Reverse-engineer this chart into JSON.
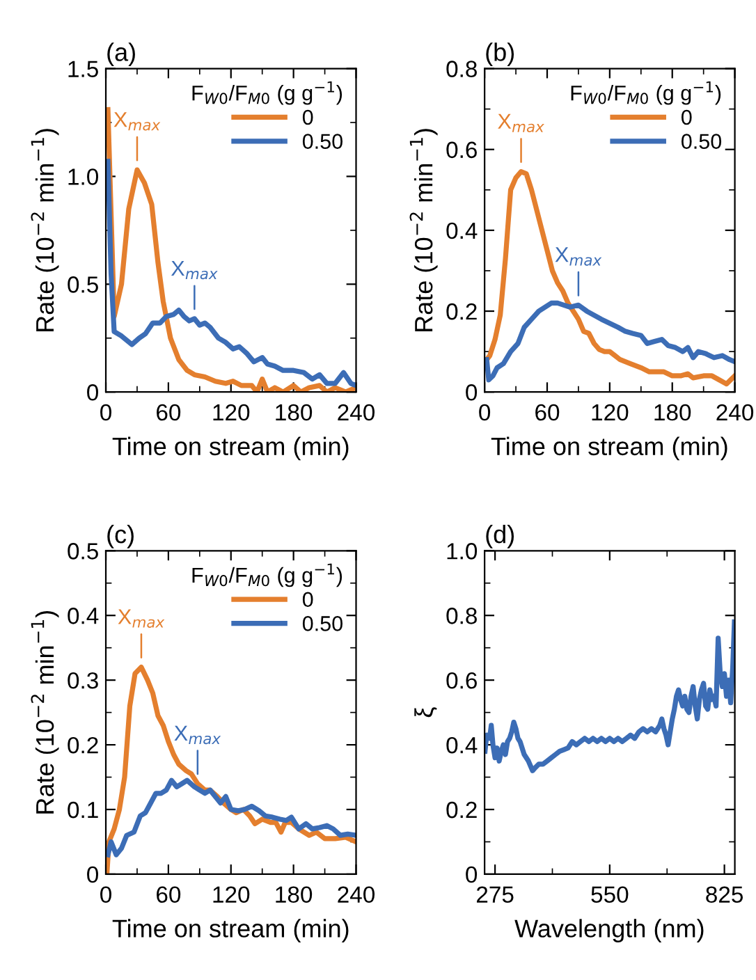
{
  "chart_data": [
    {
      "type": "line",
      "title": "(a)",
      "xlabel": "Time on stream (min)",
      "ylabel": "Rate (10$^{−2}$ min$^{−1}$)",
      "legend_title": "F$_{W0}$/F$_{M0}$ (g g$^{−1}$)",
      "legend": "top right",
      "line_style": "solid",
      "xlim": [
        0,
        240
      ],
      "xticks": [
        0,
        60,
        120,
        180,
        240
      ],
      "ylim": [
        0,
        1.5
      ],
      "yticks": [
        0,
        0.5,
        {
          "value": 1,
          "label": "1.0"
        },
        1.5
      ],
      "annotations": [
        {
          "text": "X$_{max}$",
          "x": 30,
          "y": 1.03
        },
        {
          "text": "X$_{max}$",
          "x": 85,
          "y": 0.34
        }
      ],
      "series": [
        {
          "name": "0",
          "color": "#e47f2e",
          "x": [
            2,
            8,
            15,
            22,
            30,
            37,
            44,
            50,
            55,
            62,
            70,
            78,
            85,
            95,
            105,
            115,
            122,
            130,
            140,
            145,
            150,
            155,
            162,
            170,
            180,
            187,
            195,
            205,
            212,
            220,
            230,
            240
          ],
          "values": [
            1.31,
            0.35,
            0.5,
            0.85,
            1.03,
            0.97,
            0.87,
            0.6,
            0.42,
            0.25,
            0.15,
            0.1,
            0.08,
            0.07,
            0.05,
            0.04,
            0.05,
            0.03,
            0.03,
            0.0,
            0.06,
            0.0,
            0.02,
            0.0,
            0.03,
            0.0,
            0.02,
            0.03,
            0.0,
            0.02,
            0.0,
            0.02
          ]
        },
        {
          "name": "0.50",
          "color": "#3c6db6",
          "x": [
            2,
            5,
            8,
            15,
            25,
            32,
            38,
            45,
            52,
            58,
            65,
            70,
            75,
            80,
            85,
            90,
            95,
            100,
            108,
            115,
            122,
            128,
            135,
            142,
            150,
            155,
            162,
            170,
            180,
            190,
            198,
            205,
            212,
            220,
            228,
            235,
            240
          ],
          "values": [
            1.07,
            0.55,
            0.28,
            0.26,
            0.22,
            0.25,
            0.27,
            0.32,
            0.32,
            0.35,
            0.36,
            0.38,
            0.35,
            0.33,
            0.34,
            0.31,
            0.32,
            0.3,
            0.25,
            0.23,
            0.2,
            0.21,
            0.18,
            0.14,
            0.16,
            0.13,
            0.12,
            0.1,
            0.1,
            0.09,
            0.06,
            0.08,
            0.04,
            0.04,
            0.09,
            0.04,
            0.03
          ]
        }
      ]
    },
    {
      "type": "line",
      "title": "(b)",
      "xlabel": "Time on stream (min)",
      "ylabel": "Rate (10$^{−2}$ min$^{−1}$)",
      "legend_title": "F$_{W0}$/F$_{M0}$ (g g$^{−1}$)",
      "legend": "top right",
      "line_style": "solid",
      "xlim": [
        0,
        240
      ],
      "xticks": [
        0,
        60,
        120,
        180,
        240
      ],
      "ylim": [
        0,
        0.8
      ],
      "yticks": [
        0,
        0.2,
        0.4,
        0.6,
        0.8
      ],
      "annotations": [
        {
          "text": "X$_{max}$",
          "x": 35,
          "y": 0.545
        },
        {
          "text": "X$_{max}$",
          "x": 90,
          "y": 0.215
        }
      ],
      "series": [
        {
          "name": "0",
          "color": "#e47f2e",
          "x": [
            2,
            5,
            10,
            15,
            20,
            25,
            30,
            35,
            40,
            45,
            50,
            55,
            60,
            65,
            70,
            75,
            80,
            85,
            90,
            95,
            100,
            105,
            110,
            115,
            120,
            125,
            130,
            140,
            150,
            158,
            165,
            172,
            180,
            188,
            195,
            200,
            210,
            218,
            225,
            232,
            240
          ],
          "values": [
            0.08,
            0.09,
            0.13,
            0.19,
            0.33,
            0.5,
            0.53,
            0.545,
            0.54,
            0.5,
            0.45,
            0.4,
            0.35,
            0.3,
            0.27,
            0.25,
            0.22,
            0.2,
            0.18,
            0.15,
            0.145,
            0.12,
            0.105,
            0.1,
            0.1,
            0.09,
            0.08,
            0.07,
            0.06,
            0.05,
            0.05,
            0.05,
            0.04,
            0.04,
            0.045,
            0.035,
            0.04,
            0.04,
            0.03,
            0.02,
            0.04
          ]
        },
        {
          "name": "0.50",
          "color": "#3c6db6",
          "x": [
            2,
            4,
            8,
            12,
            18,
            25,
            32,
            38,
            45,
            52,
            58,
            64,
            70,
            76,
            82,
            90,
            98,
            105,
            112,
            120,
            128,
            135,
            142,
            150,
            156,
            163,
            170,
            176,
            183,
            190,
            195,
            200,
            205,
            212,
            220,
            228,
            235,
            240
          ],
          "values": [
            0.08,
            0.03,
            0.04,
            0.06,
            0.07,
            0.1,
            0.12,
            0.16,
            0.18,
            0.2,
            0.21,
            0.22,
            0.22,
            0.215,
            0.21,
            0.215,
            0.2,
            0.19,
            0.18,
            0.17,
            0.16,
            0.15,
            0.145,
            0.14,
            0.12,
            0.125,
            0.13,
            0.115,
            0.11,
            0.1,
            0.11,
            0.085,
            0.1,
            0.095,
            0.085,
            0.09,
            0.08,
            0.075
          ]
        }
      ]
    },
    {
      "type": "line",
      "title": "(c)",
      "xlabel": "Time on stream (min)",
      "ylabel": "Rate (10$^{−2}$ min$^{−1}$)",
      "legend_title": "F$_{W0}$/F$_{M0}$ (g g$^{−1}$)",
      "legend": "top right",
      "line_style": "solid",
      "xlim": [
        0,
        240
      ],
      "xticks": [
        0,
        60,
        120,
        180,
        240
      ],
      "ylim": [
        0,
        0.5
      ],
      "yticks": [
        0,
        0.1,
        0.2,
        0.3,
        0.4,
        0.5
      ],
      "annotations": [
        {
          "text": "X$_{max}$",
          "x": 34,
          "y": 0.32
        },
        {
          "text": "X$_{max}$",
          "x": 88,
          "y": 0.14
        }
      ],
      "series": [
        {
          "name": "0",
          "color": "#e47f2e",
          "x": [
            1,
            3,
            8,
            13,
            18,
            23,
            28,
            34,
            40,
            45,
            50,
            55,
            60,
            65,
            70,
            77,
            82,
            88,
            95,
            100,
            107,
            113,
            120,
            125,
            132,
            138,
            143,
            150,
            158,
            163,
            168,
            172,
            178,
            185,
            195,
            202,
            210,
            220,
            230,
            240
          ],
          "values": [
            0.0,
            0.05,
            0.07,
            0.1,
            0.15,
            0.26,
            0.31,
            0.32,
            0.3,
            0.28,
            0.245,
            0.23,
            0.205,
            0.185,
            0.17,
            0.16,
            0.155,
            0.14,
            0.13,
            0.13,
            0.12,
            0.11,
            0.1,
            0.095,
            0.1,
            0.09,
            0.078,
            0.085,
            0.08,
            0.08,
            0.065,
            0.08,
            0.08,
            0.07,
            0.06,
            0.065,
            0.055,
            0.055,
            0.057,
            0.05
          ]
        },
        {
          "name": "0.50",
          "color": "#3c6db6",
          "x": [
            2,
            5,
            10,
            15,
            20,
            27,
            33,
            38,
            43,
            48,
            53,
            58,
            63,
            68,
            73,
            78,
            85,
            90,
            95,
            100,
            105,
            110,
            115,
            120,
            127,
            133,
            140,
            147,
            153,
            160,
            167,
            173,
            178,
            185,
            192,
            198,
            205,
            212,
            218,
            225,
            232,
            240
          ],
          "values": [
            0.03,
            0.05,
            0.03,
            0.04,
            0.06,
            0.065,
            0.09,
            0.095,
            0.11,
            0.125,
            0.125,
            0.13,
            0.145,
            0.135,
            0.14,
            0.145,
            0.135,
            0.13,
            0.125,
            0.13,
            0.12,
            0.11,
            0.12,
            0.1,
            0.098,
            0.1,
            0.105,
            0.098,
            0.09,
            0.088,
            0.085,
            0.083,
            0.088,
            0.07,
            0.078,
            0.07,
            0.072,
            0.075,
            0.07,
            0.06,
            0.062,
            0.06
          ]
        }
      ]
    },
    {
      "type": "line",
      "title": "(d)",
      "xlabel": "Wavelength (nm)",
      "ylabel": "ξ",
      "line_style": "solid",
      "xlim": [
        250,
        850
      ],
      "xticks": [
        275,
        550,
        825
      ],
      "ylim": [
        0,
        1
      ],
      "yticks": [
        0,
        0.2,
        0.4,
        0.6,
        0.8,
        {
          "value": 1,
          "label": "1.0"
        }
      ],
      "series": [
        {
          "color": "#3c6db6",
          "x": [
            251,
            255,
            262,
            266,
            270,
            275,
            280,
            285,
            290,
            295,
            300,
            305,
            310,
            315,
            320,
            325,
            330,
            335,
            345,
            355,
            365,
            372,
            380,
            390,
            400,
            410,
            420,
            430,
            440,
            450,
            460,
            470,
            480,
            490,
            500,
            510,
            520,
            530,
            540,
            550,
            560,
            570,
            580,
            590,
            600,
            610,
            620,
            630,
            640,
            650,
            660,
            670,
            675,
            680,
            685,
            690,
            695,
            700,
            705,
            710,
            715,
            720,
            725,
            730,
            735,
            740,
            745,
            750,
            755,
            760,
            765,
            770,
            775,
            780,
            785,
            790,
            795,
            800,
            805,
            810,
            815,
            820,
            825,
            830,
            835,
            840,
            845,
            849
          ],
          "values": [
            0.38,
            0.43,
            0.42,
            0.46,
            0.4,
            0.36,
            0.39,
            0.35,
            0.38,
            0.4,
            0.37,
            0.41,
            0.42,
            0.44,
            0.47,
            0.45,
            0.42,
            0.41,
            0.37,
            0.35,
            0.32,
            0.33,
            0.34,
            0.34,
            0.35,
            0.36,
            0.37,
            0.38,
            0.385,
            0.39,
            0.41,
            0.4,
            0.41,
            0.42,
            0.41,
            0.42,
            0.41,
            0.42,
            0.41,
            0.42,
            0.41,
            0.42,
            0.41,
            0.42,
            0.43,
            0.42,
            0.44,
            0.45,
            0.44,
            0.45,
            0.44,
            0.46,
            0.48,
            0.45,
            0.43,
            0.4,
            0.44,
            0.48,
            0.51,
            0.55,
            0.57,
            0.54,
            0.52,
            0.55,
            0.51,
            0.5,
            0.55,
            0.58,
            0.52,
            0.48,
            0.54,
            0.57,
            0.59,
            0.52,
            0.51,
            0.57,
            0.54,
            0.55,
            0.52,
            0.73,
            0.62,
            0.58,
            0.62,
            0.55,
            0.6,
            0.53,
            0.64,
            0.78
          ]
        }
      ]
    }
  ]
}
